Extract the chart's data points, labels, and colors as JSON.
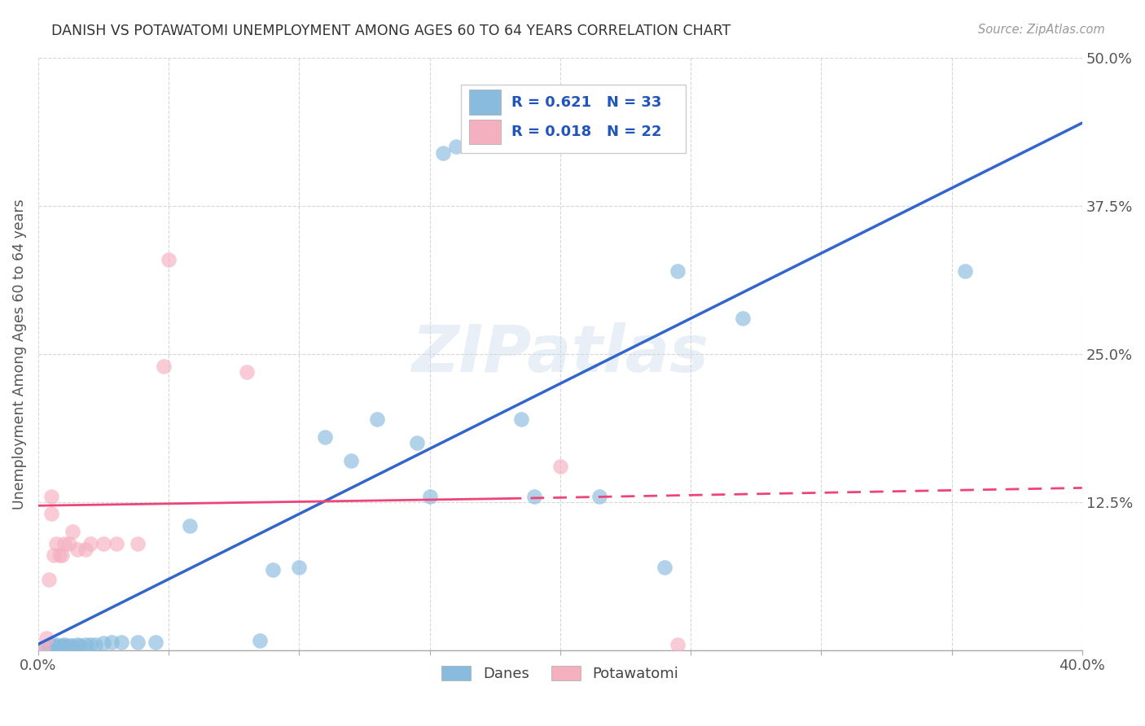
{
  "title": "DANISH VS POTAWATOMI UNEMPLOYMENT AMONG AGES 60 TO 64 YEARS CORRELATION CHART",
  "source": "Source: ZipAtlas.com",
  "ylabel": "Unemployment Among Ages 60 to 64 years",
  "xlim": [
    0,
    0.4
  ],
  "ylim": [
    0,
    0.5
  ],
  "xticks": [
    0.0,
    0.05,
    0.1,
    0.15,
    0.2,
    0.25,
    0.3,
    0.35,
    0.4
  ],
  "yticks": [
    0.0,
    0.125,
    0.25,
    0.375,
    0.5
  ],
  "yticklabels": [
    "",
    "12.5%",
    "25.0%",
    "37.5%",
    "50.0%"
  ],
  "legend_blue_R": "0.621",
  "legend_blue_N": "33",
  "legend_pink_R": "0.018",
  "legend_pink_N": "22",
  "legend_blue_label": "Danes",
  "legend_pink_label": "Potawatomi",
  "background_color": "#ffffff",
  "grid_color": "#cccccc",
  "blue_color": "#88bbdd",
  "pink_color": "#f5b0c0",
  "blue_line_color": "#3366cc",
  "pink_line_color": "#ee4477",
  "watermark_text": "ZIPatlas",
  "blue_dots": [
    [
      0.002,
      0.002
    ],
    [
      0.004,
      0.002
    ],
    [
      0.005,
      0.004
    ],
    [
      0.006,
      0.003
    ],
    [
      0.007,
      0.003
    ],
    [
      0.007,
      0.005
    ],
    [
      0.008,
      0.003
    ],
    [
      0.009,
      0.004
    ],
    [
      0.01,
      0.003
    ],
    [
      0.01,
      0.005
    ],
    [
      0.012,
      0.004
    ],
    [
      0.013,
      0.004
    ],
    [
      0.015,
      0.005
    ],
    [
      0.016,
      0.004
    ],
    [
      0.018,
      0.005
    ],
    [
      0.02,
      0.005
    ],
    [
      0.022,
      0.005
    ],
    [
      0.025,
      0.006
    ],
    [
      0.028,
      0.007
    ],
    [
      0.032,
      0.007
    ],
    [
      0.038,
      0.007
    ],
    [
      0.045,
      0.007
    ],
    [
      0.058,
      0.105
    ],
    [
      0.085,
      0.008
    ],
    [
      0.09,
      0.068
    ],
    [
      0.1,
      0.07
    ],
    [
      0.11,
      0.18
    ],
    [
      0.12,
      0.16
    ],
    [
      0.13,
      0.195
    ],
    [
      0.145,
      0.175
    ],
    [
      0.15,
      0.13
    ],
    [
      0.155,
      0.42
    ],
    [
      0.16,
      0.425
    ],
    [
      0.185,
      0.195
    ],
    [
      0.19,
      0.13
    ],
    [
      0.215,
      0.13
    ],
    [
      0.24,
      0.07
    ],
    [
      0.245,
      0.32
    ],
    [
      0.27,
      0.28
    ],
    [
      0.355,
      0.32
    ]
  ],
  "pink_dots": [
    [
      0.002,
      0.002
    ],
    [
      0.003,
      0.01
    ],
    [
      0.004,
      0.06
    ],
    [
      0.005,
      0.115
    ],
    [
      0.005,
      0.13
    ],
    [
      0.006,
      0.08
    ],
    [
      0.007,
      0.09
    ],
    [
      0.008,
      0.08
    ],
    [
      0.009,
      0.08
    ],
    [
      0.01,
      0.09
    ],
    [
      0.012,
      0.09
    ],
    [
      0.013,
      0.1
    ],
    [
      0.015,
      0.085
    ],
    [
      0.018,
      0.085
    ],
    [
      0.02,
      0.09
    ],
    [
      0.025,
      0.09
    ],
    [
      0.03,
      0.09
    ],
    [
      0.038,
      0.09
    ],
    [
      0.048,
      0.24
    ],
    [
      0.05,
      0.33
    ],
    [
      0.08,
      0.235
    ],
    [
      0.2,
      0.155
    ],
    [
      0.245,
      0.005
    ]
  ],
  "blue_trend": [
    0.0,
    0.005,
    0.4,
    0.445
  ],
  "pink_trend_solid": [
    0.0,
    0.122,
    0.18,
    0.128
  ],
  "pink_trend_dashed": [
    0.18,
    0.128,
    0.4,
    0.137
  ]
}
